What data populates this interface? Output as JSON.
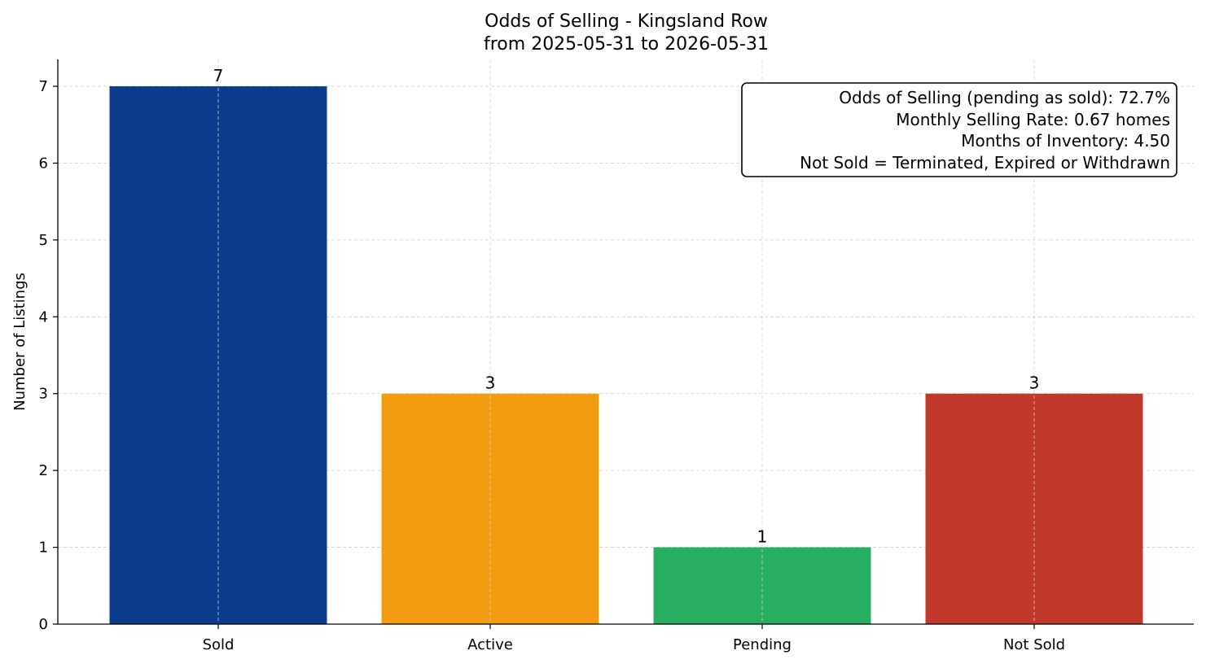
{
  "chart_data": {
    "type": "bar",
    "title": "Odds of Selling - Kingsland Row",
    "subtitle": "from 2025-05-31 to 2026-05-31",
    "xlabel": "",
    "ylabel": "Number of Listings",
    "categories": [
      "Sold",
      "Active",
      "Pending",
      "Not Sold"
    ],
    "values": [
      7,
      3,
      1,
      3
    ],
    "colors": [
      "#0b3c8c",
      "#f39c12",
      "#27ae60",
      "#c0392b"
    ],
    "ylim": [
      0,
      7.35
    ],
    "yticks": [
      0,
      1,
      2,
      3,
      4,
      5,
      6,
      7
    ],
    "grid": true,
    "legend": "none",
    "annotation": {
      "placement": "top-right",
      "lines": [
        "Odds of Selling (pending as sold): 72.7%",
        "Monthly Selling Rate: 0.67 homes",
        "Months of Inventory: 4.50",
        "Not Sold = Terminated, Expired or Withdrawn"
      ]
    }
  }
}
